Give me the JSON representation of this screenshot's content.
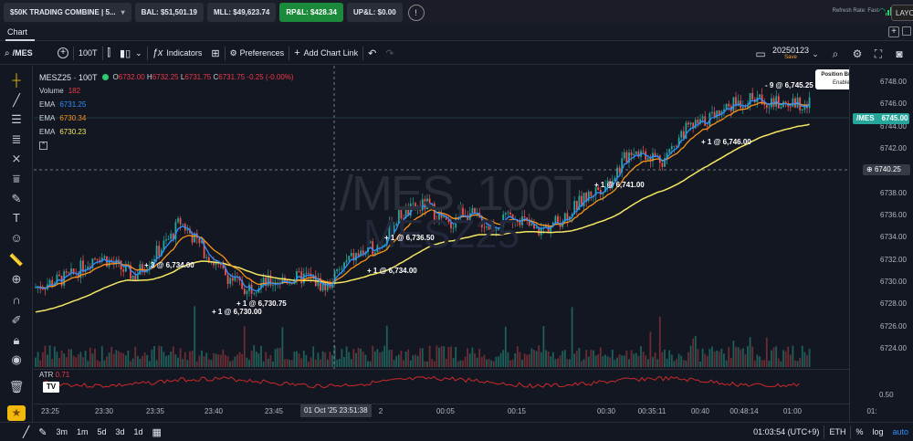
{
  "account": {
    "combine": "$50K TRADING COMBINE | 5...",
    "bal": "BAL: $51,501.19",
    "mll": "MLL: $49,623.74",
    "rpl": "RP&L: $428.34",
    "upl": "UP&L: $0.00",
    "info": "!",
    "refresh": "Refresh Rate: Fast",
    "layout": "LAYOU"
  },
  "tabs": {
    "chart": "Chart",
    "add": "+"
  },
  "toolbar": {
    "symbol": "/MES",
    "interval": "100T",
    "indicators": "Indicators",
    "preferences": "Preferences",
    "add_chart_link": "Add Chart Link",
    "date": "20250123",
    "date_sub": "Save"
  },
  "legend": {
    "symbol": "MESZ25 · 100T",
    "o_label": "O",
    "o": "6732.00",
    "h_label": "H",
    "h": "6732.25",
    "l_label": "L",
    "l": "6731.75",
    "c_label": "C",
    "c": "6731.75",
    "chg": "-0.25 (-0.00%)",
    "volume_label": "Volume",
    "volume": "182",
    "ema1_label": "EMA",
    "ema1": "6731.25",
    "ema2_label": "EMA",
    "ema2": "6730.34",
    "ema3_label": "EMA",
    "ema3": "6730.23"
  },
  "position_bracket": {
    "title": "Position Bracket",
    "status": "Enabled"
  },
  "price_labels": {
    "last": "6745.00",
    "last_sym": "/MES",
    "cursor": "6740.25"
  },
  "watermark": {
    "line1": "/MES, 100T",
    "line2": "MESZ25"
  },
  "fills": [
    {
      "text": "- 9 @ 6,745.25"
    },
    {
      "text": "+ 1 @ 6,746.00"
    },
    {
      "text": "+ 1 @ 6,741.00"
    },
    {
      "text": "+ 1 @ 6,736.50"
    },
    {
      "text": "+ 1 @ 6,734.00"
    },
    {
      "text": "+ 3 @ 6,734.00"
    },
    {
      "text": "+ 1 @ 6,730.75"
    },
    {
      "text": "+ 1 @ 6,730.00"
    }
  ],
  "price_axis": [
    "6748.00",
    "6746.00",
    "6744.00",
    "6742.00",
    "6740.00",
    "6738.00",
    "6736.00",
    "6734.00",
    "6732.00",
    "6730.00",
    "6728.00",
    "6726.00",
    "6724.00"
  ],
  "atr": {
    "label": "ATR",
    "value": "0.71",
    "axis": "0.50"
  },
  "time_axis": [
    "23:25",
    "23:30",
    "23:35",
    "23:40",
    "23:45",
    "2",
    "00:05",
    "00:15",
    "00:30",
    "00:35:11",
    "00:40",
    "00:48:14",
    "01:00",
    "01:"
  ],
  "cursor_time": "01 Oct '25   23:51:38",
  "bottom": {
    "timeframes": [
      "3m",
      "1m",
      "5d",
      "3d",
      "1d"
    ],
    "clock": "01:03:54 (UTC+9)",
    "session": "ETH",
    "pct": "%",
    "log": "log",
    "auto": "auto"
  },
  "colors": {
    "ema_fast": "#2f8fff",
    "ema_mid": "#f7931a",
    "ema_slow": "#f5e663",
    "bull": "#26a69a",
    "bear": "#ef5350"
  }
}
